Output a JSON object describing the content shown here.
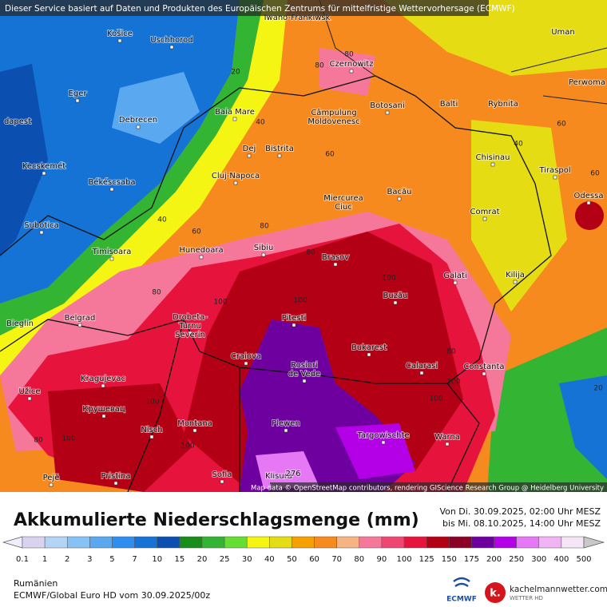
{
  "header": {
    "notice": "Dieser Service basiert auf Daten und Produkten des Europäischen Zentrums für mittelfristige Wettervorhersage (ECMWF)",
    "attribution": "Map data © OpenStreetMap contributors, rendering GIScience Research Group @ Heidelberg University"
  },
  "cities": [
    "Iwano-Frankiwsk",
    "Košice",
    "Uschhorod",
    "Uman",
    "Czernowitz",
    "Perwoma",
    "Eger",
    "Balti",
    "Rybnita",
    "Botosani",
    "Câmpulung",
    "Moldovenesc",
    "Baia Mare",
    "Debrecen",
    "dapest",
    "Dej",
    "Bistrita",
    "Chisinau",
    "Tiraspol",
    "Kecskemét",
    "Cluj-Napoca",
    "Békéscsaba",
    "Bacău",
    "Miercurea",
    "Ciuc",
    "Odessa",
    "Comrat",
    "Subotica",
    "Timisoara",
    "Hunedoara",
    "Sibiu",
    "Brasov",
    "Kilija",
    "Galati",
    "Buzău",
    "Bieglin",
    "Belgrad",
    "Drobeta-",
    "Turnu",
    "Severin",
    "Pitesti",
    "Craiova",
    "Bukarest",
    "Rosiori",
    "de Vede",
    "Calarasi",
    "Constanta",
    "Kragujevac",
    "Užice",
    "Крушевац",
    "Nisch",
    "Montana",
    "Plewen",
    "Targowischte",
    "Warna",
    "Pejë",
    "Pristina",
    "Sofia",
    "Klisura",
    "276"
  ],
  "contours": [
    20,
    40,
    60,
    80,
    40,
    60,
    80,
    80,
    100,
    100,
    100,
    80,
    100,
    100,
    100,
    100,
    80,
    100,
    60,
    40,
    60,
    20,
    80,
    80
  ],
  "footer": {
    "title": "Akkumulierte Niederschlagsmenge (mm)",
    "from": "Von Di. 30.09.2025, 02:00 Uhr MESZ",
    "to": "bis Mi. 08.10.2025, 14:00 Uhr MESZ",
    "region": "Rumänien",
    "model": "ECMWF/Global Euro HD vom  30.09.2025/00z",
    "ecmwf": "ECMWF",
    "site": "kachelmannwetter.com",
    "site_sub": "WETTER HD",
    "site_logo": "k."
  },
  "legend": {
    "values": [
      0.1,
      1,
      2,
      3,
      5,
      7,
      10,
      15,
      20,
      25,
      30,
      40,
      50,
      60,
      70,
      80,
      90,
      100,
      125,
      150,
      175,
      200,
      250,
      300,
      400,
      500
    ],
    "colors": [
      "#d9d3ef",
      "#b3d4f5",
      "#87c2f5",
      "#5aa8f0",
      "#2e8ef0",
      "#1673d6",
      "#0b4fb0",
      "#1a8c1a",
      "#33b533",
      "#66dd33",
      "#f5f514",
      "#e6dc14",
      "#f5a000",
      "#f78a1e",
      "#f5b482",
      "#f5789b",
      "#f04673",
      "#e6143c",
      "#b40014",
      "#8c0028",
      "#6e00a0",
      "#b400e6",
      "#e678f5",
      "#f0b4f5",
      "#f5e6f5"
    ]
  }
}
